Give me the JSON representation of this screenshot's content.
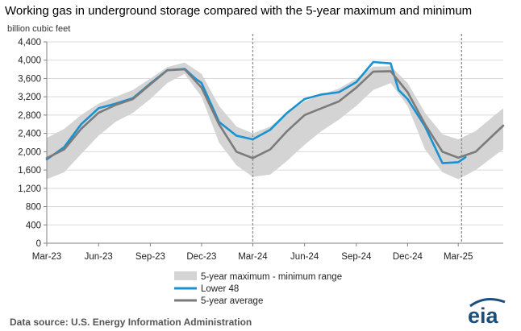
{
  "chart_data": {
    "type": "line",
    "title": "Working gas in underground  storage compared with the 5-year maximum and minimum",
    "unit_label": "billion cubic feet",
    "ylim": [
      0,
      4400
    ],
    "y_ticks": [
      "0",
      "400",
      "800",
      "1,200",
      "1,600",
      "2,000",
      "2,400",
      "2,800",
      "3,200",
      "3,600",
      "4,000",
      "4,400"
    ],
    "xlim": [
      "2023-03-01",
      "2025-05-20"
    ],
    "x_ticks": [
      {
        "date": "2023-03-01",
        "label": "Mar-23"
      },
      {
        "date": "2023-06-01",
        "label": "Jun-23"
      },
      {
        "date": "2023-09-01",
        "label": "Sep-23"
      },
      {
        "date": "2023-12-01",
        "label": "Dec-23"
      },
      {
        "date": "2024-03-01",
        "label": "Mar-24"
      },
      {
        "date": "2024-06-01",
        "label": "Jun-24"
      },
      {
        "date": "2024-09-01",
        "label": "Sep-24"
      },
      {
        "date": "2024-12-01",
        "label": "Dec-24"
      },
      {
        "date": "2025-03-01",
        "label": "Mar-25"
      }
    ],
    "reference_lines": [
      "2024-03-01",
      "2025-03-07"
    ],
    "grid": true,
    "legend_position": "bottom",
    "colors": {
      "range": "#d4d4d4",
      "lower48": "#1a91d0",
      "average": "#7b7b7b",
      "grid": "#d9d9d9",
      "refline": "#909090"
    },
    "series": [
      {
        "name": "5-year maximum - minimum range",
        "type": "band",
        "x": [
          "2023-03-01",
          "2023-04-01",
          "2023-05-01",
          "2023-06-01",
          "2023-07-01",
          "2023-08-01",
          "2023-09-01",
          "2023-10-01",
          "2023-11-01",
          "2023-12-01",
          "2024-01-01",
          "2024-02-01",
          "2024-03-01",
          "2024-04-01",
          "2024-05-01",
          "2024-06-01",
          "2024-07-01",
          "2024-08-01",
          "2024-09-01",
          "2024-10-01",
          "2024-11-01",
          "2024-12-01",
          "2025-01-01",
          "2025-02-01",
          "2025-03-01",
          "2025-04-01",
          "2025-05-01",
          "2025-05-20"
        ],
        "upper": [
          2300,
          2500,
          2800,
          3050,
          3200,
          3350,
          3600,
          3850,
          3950,
          3700,
          3000,
          2550,
          2400,
          2550,
          2850,
          3100,
          3250,
          3380,
          3600,
          3860,
          3870,
          3500,
          2850,
          2380,
          2270,
          2450,
          2760,
          2950
        ],
        "lower": [
          1400,
          1550,
          1950,
          2350,
          2650,
          2850,
          3150,
          3500,
          3700,
          3200,
          2200,
          1700,
          1450,
          1500,
          1800,
          2150,
          2450,
          2700,
          3000,
          3350,
          3500,
          3000,
          2050,
          1550,
          1400,
          1600,
          1880,
          2050
        ]
      },
      {
        "name": "Lower 48",
        "x": [
          "2023-03-01",
          "2023-04-01",
          "2023-05-01",
          "2023-06-01",
          "2023-07-01",
          "2023-08-01",
          "2023-09-01",
          "2023-10-01",
          "2023-11-01",
          "2023-11-20",
          "2023-12-01",
          "2024-01-01",
          "2024-02-01",
          "2024-03-01",
          "2024-04-01",
          "2024-05-01",
          "2024-06-01",
          "2024-07-01",
          "2024-08-01",
          "2024-09-01",
          "2024-10-01",
          "2024-11-01",
          "2024-11-15",
          "2024-12-01",
          "2025-01-01",
          "2025-02-01",
          "2025-03-01",
          "2025-03-14"
        ],
        "values": [
          1830,
          2100,
          2600,
          2950,
          3050,
          3170,
          3490,
          3780,
          3810,
          3600,
          3500,
          2650,
          2350,
          2270,
          2480,
          2850,
          3150,
          3250,
          3300,
          3520,
          3960,
          3930,
          3350,
          3150,
          2550,
          1750,
          1770,
          1880
        ]
      },
      {
        "name": "5-year average",
        "x": [
          "2023-03-01",
          "2023-04-01",
          "2023-05-01",
          "2023-06-01",
          "2023-07-01",
          "2023-08-01",
          "2023-09-01",
          "2023-10-01",
          "2023-11-01",
          "2023-12-01",
          "2024-01-01",
          "2024-02-01",
          "2024-03-01",
          "2024-04-01",
          "2024-05-01",
          "2024-06-01",
          "2024-07-01",
          "2024-08-01",
          "2024-09-01",
          "2024-10-01",
          "2024-11-01",
          "2024-12-01",
          "2025-01-01",
          "2025-02-01",
          "2025-03-01",
          "2025-04-01",
          "2025-05-01",
          "2025-05-20"
        ],
        "values": [
          1860,
          2050,
          2500,
          2850,
          3020,
          3150,
          3470,
          3780,
          3800,
          3400,
          2600,
          2000,
          1860,
          2050,
          2450,
          2800,
          2950,
          3100,
          3400,
          3750,
          3760,
          3300,
          2600,
          2000,
          1870,
          2000,
          2350,
          2570
        ]
      }
    ]
  },
  "source_text": "Data source:  U.S. Energy Information Administration",
  "logo_text": "eia"
}
